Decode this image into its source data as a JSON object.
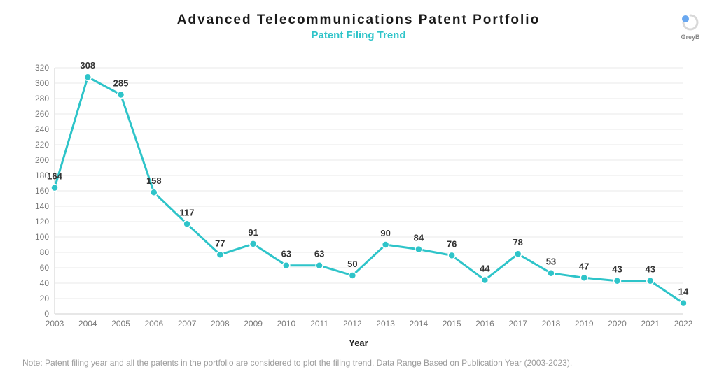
{
  "header": {
    "title": "Advanced Telecommunications Patent Portfolio",
    "subtitle": "Patent Filing Trend",
    "title_fontsize": 19,
    "title_color": "#1a1a1a",
    "subtitle_fontsize": 15,
    "subtitle_color": "#2ec4c9"
  },
  "logo": {
    "brand": "GreyB",
    "dot_color": "#6aa8f0",
    "swirl_color": "#d8d8d8"
  },
  "chart": {
    "type": "line",
    "years": [
      "2003",
      "2004",
      "2005",
      "2006",
      "2007",
      "2008",
      "2009",
      "2010",
      "2011",
      "2012",
      "2013",
      "2014",
      "2015",
      "2016",
      "2017",
      "2018",
      "2019",
      "2020",
      "2021",
      "2022"
    ],
    "values": [
      164,
      308,
      285,
      158,
      117,
      77,
      91,
      63,
      63,
      50,
      90,
      84,
      76,
      44,
      78,
      53,
      47,
      43,
      43,
      14
    ],
    "line_color": "#2ec4c9",
    "marker_color": "#2ec4c9",
    "marker_fill": "#ffffff",
    "line_width": 3,
    "marker_radius": 5,
    "ylim": [
      0,
      320
    ],
    "ytick_step": 20,
    "yticks": [
      0,
      20,
      40,
      60,
      80,
      100,
      120,
      140,
      160,
      180,
      200,
      220,
      240,
      260,
      280,
      300,
      320
    ],
    "grid_color": "#e9e9e9",
    "axis_color": "#cfcfcf",
    "tick_font_color": "#7a7a7a",
    "tick_fontsize": 12,
    "value_label_color": "#333333",
    "value_label_fontsize": 13,
    "x_axis_title": "Year",
    "background_color": "#ffffff"
  },
  "footnote": {
    "text": "Note: Patent filing year and all the patents in the portfolio are considered to plot the filing trend, Data Range Based on Publication Year (2003-2023).",
    "color": "#9b9b9b",
    "fontsize": 12
  }
}
